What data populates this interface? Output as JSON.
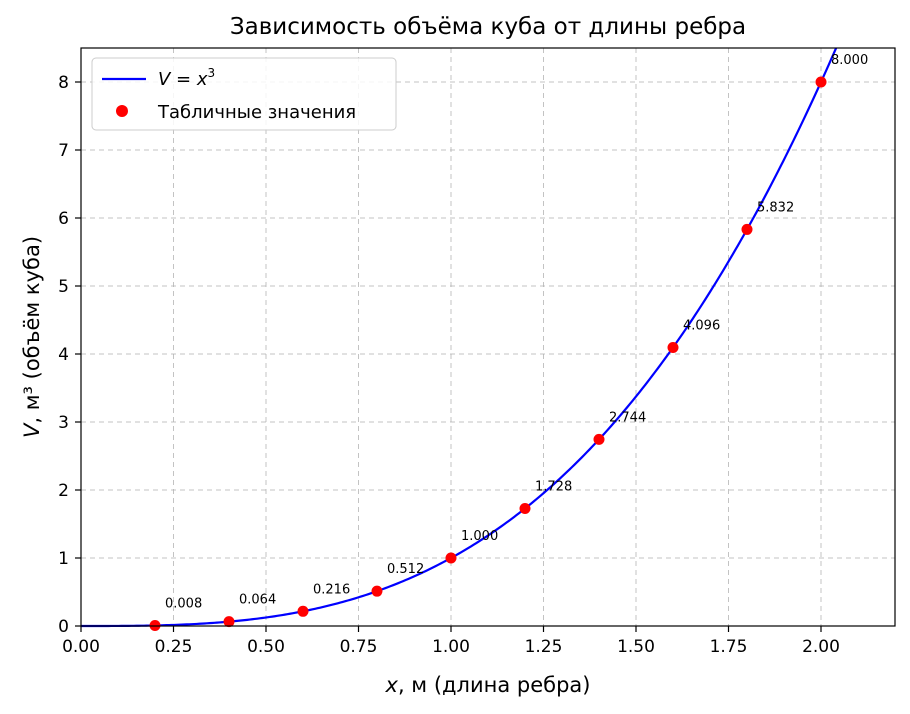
{
  "chart_data": {
    "type": "line",
    "title": "Зависимость объёма куба от длины ребра",
    "xlabel": "x, м (длина ребра)",
    "xlabel_var": "x",
    "xlabel_rest": ", м (длина ребра)",
    "ylabel": "V, м³ (объём куба)",
    "ylabel_var": "V",
    "ylabel_rest": ", м³ (объём куба)",
    "xlim": [
      0,
      2.2
    ],
    "ylim": [
      0,
      8.5
    ],
    "xticks": [
      0,
      0.25,
      0.5,
      0.75,
      1.0,
      1.25,
      1.5,
      1.75,
      2.0
    ],
    "xtick_labels": [
      "0.00",
      "0.25",
      "0.50",
      "0.75",
      "1.00",
      "1.25",
      "1.50",
      "1.75",
      "2.00"
    ],
    "yticks": [
      0,
      1,
      2,
      3,
      4,
      5,
      6,
      7,
      8
    ],
    "ytick_labels": [
      "0",
      "1",
      "2",
      "3",
      "4",
      "5",
      "6",
      "7",
      "8"
    ],
    "grid": true,
    "legend_position": "top-left",
    "series": [
      {
        "name": "V = x³",
        "kind": "line",
        "function": "x^3",
        "color": "#0000ff"
      },
      {
        "name": "Табличные значения",
        "kind": "scatter",
        "color": "#ff0000",
        "x": [
          0.2,
          0.4,
          0.6,
          0.8,
          1.0,
          1.2,
          1.4,
          1.6,
          1.8,
          2.0
        ],
        "y": [
          0.008,
          0.064,
          0.216,
          0.512,
          1.0,
          1.728,
          2.744,
          4.096,
          5.832,
          8.0
        ],
        "labels": [
          "0.008",
          "0.064",
          "0.216",
          "0.512",
          "1.000",
          "1.728",
          "2.744",
          "4.096",
          "5.832",
          "8.000"
        ]
      }
    ],
    "legend": {
      "line_label_var": "V",
      "line_label_eq": " = ",
      "line_label_x": "x",
      "line_label_exp": "3",
      "scatter_label": "Табличные значения"
    }
  }
}
